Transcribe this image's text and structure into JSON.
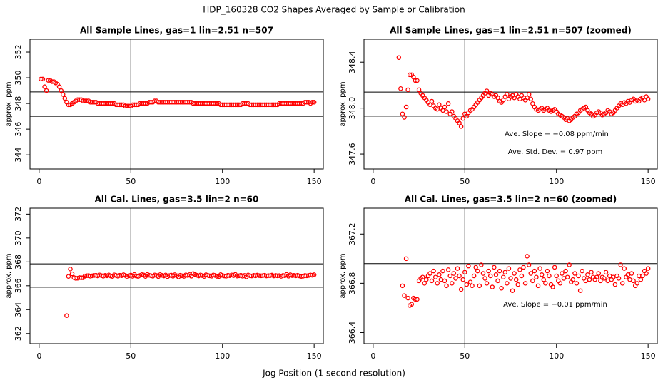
{
  "title": "HDP_160328  CO2 Shapes Averaged by Sample or Calibration",
  "x_label": "Jog Position (1 second resolution)",
  "chart_data": [
    {
      "type": "scatter",
      "title": "All Sample Lines, gas=1 lin=2.51 n=507",
      "y_label": "approx. ppm",
      "color": "#ff0000",
      "xlim": [
        -5,
        155
      ],
      "ylim": [
        342.9,
        353.0
      ],
      "xticks": [
        0,
        50,
        100,
        150
      ],
      "yticks": [
        344,
        346,
        348,
        350,
        352
      ],
      "hlines": [
        348.9,
        347.0
      ],
      "vline": 50,
      "x": [
        1,
        2,
        3,
        4,
        5,
        6,
        7,
        8,
        9,
        10,
        11,
        12,
        13,
        14,
        15,
        16,
        17,
        18,
        19,
        20,
        21,
        22,
        23,
        24,
        25,
        26,
        27,
        28,
        29,
        30,
        31,
        32,
        33,
        34,
        35,
        36,
        37,
        38,
        39,
        40,
        41,
        42,
        43,
        44,
        45,
        46,
        47,
        48,
        49,
        50,
        51,
        52,
        53,
        54,
        55,
        56,
        57,
        58,
        59,
        60,
        61,
        62,
        63,
        64,
        65,
        66,
        67,
        68,
        69,
        70,
        71,
        72,
        73,
        74,
        75,
        76,
        77,
        78,
        79,
        80,
        81,
        82,
        83,
        84,
        85,
        86,
        87,
        88,
        89,
        90,
        91,
        92,
        93,
        94,
        95,
        96,
        97,
        98,
        99,
        100,
        101,
        102,
        103,
        104,
        105,
        106,
        107,
        108,
        109,
        110,
        111,
        112,
        113,
        114,
        115,
        116,
        117,
        118,
        119,
        120,
        121,
        122,
        123,
        124,
        125,
        126,
        127,
        128,
        129,
        130,
        131,
        132,
        133,
        134,
        135,
        136,
        137,
        138,
        139,
        140,
        141,
        142,
        143,
        144,
        145,
        146,
        147,
        148,
        149,
        150
      ],
      "values": [
        349.9,
        349.9,
        349.3,
        349.0,
        349.8,
        349.8,
        349.7,
        349.7,
        349.6,
        349.5,
        349.3,
        349.0,
        348.7,
        348.4,
        348.1,
        347.9,
        347.9,
        348.0,
        348.1,
        348.2,
        348.3,
        348.3,
        348.3,
        348.2,
        348.2,
        348.2,
        348.2,
        348.1,
        348.1,
        348.1,
        348.1,
        348.0,
        348.0,
        348.0,
        348.0,
        348.0,
        348.0,
        348.0,
        348.0,
        348.0,
        348.0,
        347.9,
        347.9,
        347.9,
        347.9,
        347.9,
        347.8,
        347.8,
        347.8,
        347.8,
        347.9,
        347.9,
        347.9,
        347.9,
        348.0,
        348.0,
        348.0,
        348.0,
        348.0,
        348.1,
        348.1,
        348.1,
        348.2,
        348.2,
        348.1,
        348.1,
        348.1,
        348.1,
        348.1,
        348.1,
        348.1,
        348.1,
        348.1,
        348.1,
        348.1,
        348.1,
        348.1,
        348.1,
        348.1,
        348.1,
        348.1,
        348.1,
        348.1,
        348.0,
        348.0,
        348.0,
        348.0,
        348.0,
        348.0,
        348.0,
        348.0,
        348.0,
        348.0,
        348.0,
        348.0,
        348.0,
        348.0,
        348.0,
        347.9,
        347.9,
        347.9,
        347.9,
        347.9,
        347.9,
        347.9,
        347.9,
        347.9,
        347.9,
        347.9,
        347.9,
        348.0,
        348.0,
        348.0,
        348.0,
        347.9,
        347.9,
        347.9,
        347.9,
        347.9,
        347.9,
        347.9,
        347.9,
        347.9,
        347.9,
        347.9,
        347.9,
        347.9,
        347.9,
        347.9,
        347.9,
        348.0,
        348.0,
        348.0,
        348.0,
        348.0,
        348.0,
        348.0,
        348.0,
        348.0,
        348.0,
        348.0,
        348.0,
        348.0,
        348.0,
        348.1,
        348.1,
        348.1,
        348.0,
        348.1,
        348.1
      ]
    },
    {
      "type": "scatter",
      "title": "All Sample Lines, gas=1 lin=2.51 n=507 (zoomed)",
      "y_label": "approx. ppm",
      "color": "#ff0000",
      "xlim": [
        -5,
        155
      ],
      "ylim": [
        347.47,
        348.6
      ],
      "xticks": [
        0,
        50,
        100,
        150
      ],
      "yticks": [
        347.6,
        {
          "value": 348,
          "label": "348.0"
        },
        348.4
      ],
      "hlines": [
        348.14,
        347.93
      ],
      "vline": 50,
      "annotations": [
        "Ave. Slope =  −0.08  ppm/min",
        "Ave. Std. Dev. =  0.97  ppm"
      ],
      "x": [
        14,
        15,
        16,
        17,
        18,
        19,
        20,
        21,
        22,
        23,
        24,
        25,
        26,
        27,
        28,
        29,
        30,
        31,
        32,
        33,
        34,
        35,
        36,
        37,
        38,
        39,
        40,
        41,
        42,
        43,
        44,
        45,
        46,
        47,
        48,
        49,
        50,
        51,
        52,
        53,
        54,
        55,
        56,
        57,
        58,
        59,
        60,
        61,
        62,
        63,
        64,
        65,
        66,
        67,
        68,
        69,
        70,
        71,
        72,
        73,
        74,
        75,
        76,
        77,
        78,
        79,
        80,
        81,
        82,
        83,
        84,
        85,
        86,
        87,
        88,
        89,
        90,
        91,
        92,
        93,
        94,
        95,
        96,
        97,
        98,
        99,
        100,
        101,
        102,
        103,
        104,
        105,
        106,
        107,
        108,
        109,
        110,
        111,
        112,
        113,
        114,
        115,
        116,
        117,
        118,
        119,
        120,
        121,
        122,
        123,
        124,
        125,
        126,
        127,
        128,
        129,
        130,
        131,
        132,
        133,
        134,
        135,
        136,
        137,
        138,
        139,
        140,
        141,
        142,
        143,
        144,
        145,
        146,
        147,
        148,
        149,
        150
      ],
      "values": [
        348.44,
        348.17,
        347.95,
        347.92,
        348.01,
        348.16,
        348.29,
        348.29,
        348.27,
        348.24,
        348.24,
        348.16,
        348.13,
        348.11,
        348.09,
        348.07,
        348.05,
        348.03,
        348.06,
        348.02,
        348.0,
        347.99,
        348.03,
        348.0,
        347.98,
        348.01,
        347.97,
        348.04,
        347.95,
        347.97,
        347.93,
        347.91,
        347.89,
        347.87,
        347.84,
        347.91,
        347.95,
        347.93,
        347.96,
        347.98,
        347.99,
        348.01,
        348.03,
        348.05,
        348.07,
        348.09,
        348.11,
        348.13,
        348.15,
        348.11,
        348.13,
        348.12,
        348.1,
        348.11,
        348.09,
        348.06,
        348.05,
        348.07,
        348.1,
        348.12,
        348.08,
        348.1,
        348.11,
        348.09,
        348.12,
        348.1,
        348.08,
        348.11,
        348.09,
        348.07,
        348.09,
        348.12,
        348.08,
        348.04,
        348.01,
        347.99,
        347.98,
        347.99,
        348.0,
        347.98,
        347.99,
        348.0,
        347.98,
        347.97,
        347.98,
        347.99,
        347.97,
        347.95,
        347.94,
        347.93,
        347.92,
        347.9,
        347.91,
        347.89,
        347.9,
        347.92,
        347.93,
        347.95,
        347.96,
        347.98,
        347.99,
        348.0,
        348.01,
        347.98,
        347.96,
        347.95,
        347.93,
        347.94,
        347.96,
        347.97,
        347.96,
        347.94,
        347.95,
        347.96,
        347.98,
        347.97,
        347.95,
        347.96,
        347.98,
        348.0,
        348.02,
        348.04,
        348.03,
        348.05,
        348.04,
        348.06,
        348.05,
        348.07,
        348.08,
        348.06,
        348.07,
        348.06,
        348.08,
        348.09,
        348.07,
        348.1,
        348.08
      ]
    },
    {
      "type": "scatter",
      "title": "All Cal. Lines, gas=3.5 lin=2 n=60",
      "y_label": "approx. ppm",
      "color": "#ff0000",
      "xlim": [
        -5,
        155
      ],
      "ylim": [
        361.15,
        372.5
      ],
      "xticks": [
        0,
        50,
        100,
        150
      ],
      "yticks": [
        362,
        364,
        366,
        368,
        370,
        372
      ],
      "hlines": [
        367.83,
        365.88
      ],
      "vline": 50,
      "x": [
        15,
        16,
        17,
        18,
        19,
        20,
        21,
        22,
        23,
        24,
        25,
        26,
        27,
        28,
        29,
        30,
        31,
        32,
        33,
        34,
        35,
        36,
        37,
        38,
        39,
        40,
        41,
        42,
        43,
        44,
        45,
        46,
        47,
        48,
        49,
        50,
        51,
        52,
        53,
        54,
        55,
        56,
        57,
        58,
        59,
        60,
        61,
        62,
        63,
        64,
        65,
        66,
        67,
        68,
        69,
        70,
        71,
        72,
        73,
        74,
        75,
        76,
        77,
        78,
        79,
        80,
        81,
        82,
        83,
        84,
        85,
        86,
        87,
        88,
        89,
        90,
        91,
        92,
        93,
        94,
        95,
        96,
        97,
        98,
        99,
        100,
        101,
        102,
        103,
        104,
        105,
        106,
        107,
        108,
        109,
        110,
        111,
        112,
        113,
        114,
        115,
        116,
        117,
        118,
        119,
        120,
        121,
        122,
        123,
        124,
        125,
        126,
        127,
        128,
        129,
        130,
        131,
        132,
        133,
        134,
        135,
        136,
        137,
        138,
        139,
        140,
        141,
        142,
        143,
        144,
        145,
        146,
        147,
        148,
        149,
        150
      ],
      "values": [
        363.5,
        366.78,
        367.4,
        367.0,
        366.68,
        366.62,
        366.63,
        366.68,
        366.67,
        366.67,
        366.82,
        366.84,
        366.85,
        366.8,
        366.83,
        366.86,
        366.88,
        366.82,
        366.9,
        366.85,
        366.8,
        366.87,
        366.83,
        366.9,
        366.82,
        366.78,
        366.91,
        366.86,
        366.8,
        366.88,
        366.84,
        366.92,
        366.86,
        366.75,
        366.83,
        366.89,
        366.79,
        366.94,
        366.81,
        366.78,
        366.86,
        366.93,
        366.9,
        366.78,
        366.95,
        366.88,
        366.84,
        366.8,
        366.9,
        366.86,
        366.77,
        366.93,
        366.87,
        366.82,
        366.9,
        366.76,
        366.85,
        366.89,
        366.8,
        366.92,
        366.84,
        366.74,
        366.88,
        366.83,
        366.79,
        366.91,
        366.86,
        366.93,
        366.8,
        367.02,
        366.95,
        366.88,
        366.82,
        366.9,
        366.85,
        366.78,
        366.92,
        366.87,
        366.83,
        366.8,
        366.9,
        366.86,
        366.79,
        366.77,
        366.93,
        366.86,
        366.82,
        366.8,
        366.88,
        366.84,
        366.9,
        366.85,
        366.95,
        366.81,
        366.83,
        366.88,
        366.8,
        366.86,
        366.74,
        366.9,
        366.84,
        366.82,
        366.87,
        366.83,
        366.89,
        366.85,
        366.83,
        366.85,
        366.88,
        366.82,
        366.85,
        366.84,
        366.89,
        366.82,
        366.86,
        366.83,
        366.85,
        366.79,
        366.86,
        366.84,
        366.95,
        366.8,
        366.92,
        366.85,
        366.87,
        366.83,
        366.88,
        366.82,
        366.78,
        366.8,
        366.86,
        366.83,
        366.86,
        366.9,
        366.88,
        366.92
      ]
    },
    {
      "type": "scatter",
      "title": "All Cal. Lines, gas=3.5 lin=2 n=60 (zoomed)",
      "y_label": "approx. ppm",
      "color": "#ff0000",
      "xlim": [
        -5,
        155
      ],
      "ylim": [
        366.31,
        367.41
      ],
      "xticks": [
        0,
        50,
        100,
        150
      ],
      "yticks": [
        366.4,
        366.8,
        367.2
      ],
      "hlines": [
        366.96,
        366.77
      ],
      "vline": 50,
      "annotations": [
        "Ave. Slope =  −0.01  ppm/min"
      ],
      "x": [
        16,
        17,
        18,
        19,
        20,
        21,
        22,
        23,
        24,
        25,
        26,
        27,
        28,
        29,
        30,
        31,
        32,
        33,
        34,
        35,
        36,
        37,
        38,
        39,
        40,
        41,
        42,
        43,
        44,
        45,
        46,
        47,
        48,
        49,
        50,
        51,
        52,
        53,
        54,
        55,
        56,
        57,
        58,
        59,
        60,
        61,
        62,
        63,
        64,
        65,
        66,
        67,
        68,
        69,
        70,
        71,
        72,
        73,
        74,
        75,
        76,
        77,
        78,
        79,
        80,
        81,
        82,
        83,
        84,
        85,
        86,
        87,
        88,
        89,
        90,
        91,
        92,
        93,
        94,
        95,
        96,
        97,
        98,
        99,
        100,
        101,
        102,
        103,
        104,
        105,
        106,
        107,
        108,
        109,
        110,
        111,
        112,
        113,
        114,
        115,
        116,
        117,
        118,
        119,
        120,
        121,
        122,
        123,
        124,
        125,
        126,
        127,
        128,
        129,
        130,
        131,
        132,
        133,
        134,
        135,
        136,
        137,
        138,
        139,
        140,
        141,
        142,
        143,
        144,
        145,
        146,
        147,
        148,
        149,
        150
      ],
      "values": [
        366.78,
        366.7,
        367.0,
        366.68,
        366.62,
        366.63,
        366.68,
        366.67,
        366.67,
        366.82,
        366.84,
        366.85,
        366.8,
        366.83,
        366.86,
        366.88,
        366.82,
        366.9,
        366.85,
        366.8,
        366.87,
        366.83,
        366.9,
        366.82,
        366.78,
        366.91,
        366.86,
        366.8,
        366.88,
        366.84,
        366.92,
        366.86,
        366.75,
        366.83,
        366.89,
        366.79,
        366.94,
        366.81,
        366.78,
        366.86,
        366.93,
        366.9,
        366.78,
        366.95,
        366.88,
        366.84,
        366.8,
        366.9,
        366.86,
        366.77,
        366.93,
        366.87,
        366.82,
        366.9,
        366.76,
        366.85,
        366.89,
        366.8,
        366.92,
        366.84,
        366.74,
        366.88,
        366.83,
        366.79,
        366.91,
        366.86,
        366.93,
        366.8,
        367.02,
        366.95,
        366.88,
        366.82,
        366.9,
        366.85,
        366.78,
        366.92,
        366.87,
        366.83,
        366.8,
        366.9,
        366.86,
        366.79,
        366.77,
        366.93,
        366.86,
        366.82,
        366.8,
        366.88,
        366.84,
        366.9,
        366.85,
        366.95,
        366.81,
        366.83,
        366.88,
        366.8,
        366.86,
        366.74,
        366.9,
        366.84,
        366.82,
        366.87,
        366.83,
        366.89,
        366.85,
        366.83,
        366.85,
        366.88,
        366.82,
        366.85,
        366.84,
        366.89,
        366.82,
        366.86,
        366.83,
        366.85,
        366.79,
        366.86,
        366.84,
        366.95,
        366.8,
        366.92,
        366.85,
        366.87,
        366.83,
        366.88,
        366.82,
        366.78,
        366.8,
        366.86,
        366.83,
        366.86,
        366.9,
        366.88,
        366.92
      ]
    }
  ]
}
